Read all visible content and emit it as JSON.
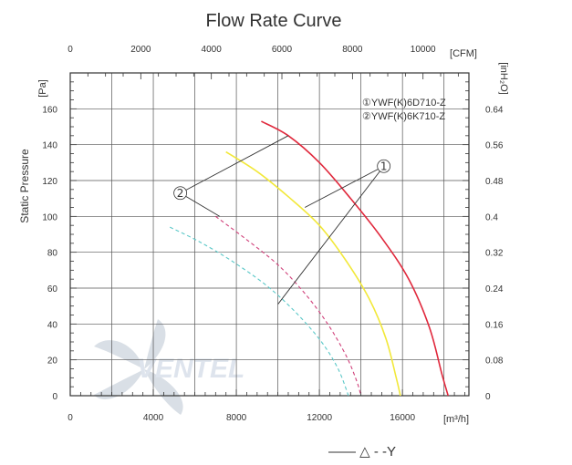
{
  "chart_data": {
    "type": "line",
    "title": "Flow Rate Curve",
    "ylabel": "Static Pressure",
    "x_bottom": {
      "unit": "[m³/h]",
      "range": [
        0,
        19200
      ],
      "ticks": [
        0,
        4000,
        8000,
        12000,
        16000
      ],
      "tick_labels": [
        "0",
        "4000",
        "8000",
        "12000",
        "16000"
      ]
    },
    "x_top": {
      "unit": "[CFM]",
      "range": [
        0,
        11301
      ],
      "ticks": [
        0,
        2000,
        4000,
        6000,
        8000,
        10000
      ],
      "tick_labels": [
        "0",
        "2000",
        "4000",
        "6000",
        "8000",
        "10000"
      ]
    },
    "y_left": {
      "unit": "[Pa]",
      "range": [
        0,
        180
      ],
      "ticks": [
        0,
        20,
        40,
        60,
        80,
        100,
        120,
        140,
        160
      ],
      "tick_labels": [
        "0",
        "20",
        "40",
        "60",
        "80",
        "100",
        "120",
        "140",
        "160"
      ]
    },
    "y_right": {
      "unit": "[inH₂O]",
      "ticks": [
        0,
        0.08,
        0.16,
        0.24,
        0.32,
        0.4,
        0.48,
        0.56,
        0.64
      ],
      "tick_labels": [
        "0",
        "0.08",
        "0.16",
        "0.24",
        "0.32",
        "0.4",
        "0.48",
        "0.56",
        "0.64"
      ]
    },
    "grid": true,
    "legend": [
      "①YWF(K)6D710-Z",
      "②YWF(K)6K710-Z"
    ],
    "series": [
      {
        "color": "#e0283c",
        "dash": false,
        "points": [
          [
            9200,
            153
          ],
          [
            10500,
            145
          ],
          [
            12000,
            130
          ],
          [
            13500,
            110
          ],
          [
            15000,
            88
          ],
          [
            16300,
            65
          ],
          [
            17300,
            38
          ],
          [
            17900,
            12
          ],
          [
            18200,
            0
          ]
        ]
      },
      {
        "color": "#f2e83a",
        "dash": false,
        "points": [
          [
            7500,
            136
          ],
          [
            9000,
            125
          ],
          [
            10500,
            111
          ],
          [
            12000,
            95
          ],
          [
            13300,
            75
          ],
          [
            14400,
            54
          ],
          [
            15200,
            32
          ],
          [
            15700,
            10
          ],
          [
            15900,
            0
          ]
        ]
      },
      {
        "color": "#d0407a",
        "dash": true,
        "points": [
          [
            7000,
            100
          ],
          [
            8500,
            87
          ],
          [
            10000,
            73
          ],
          [
            11300,
            57
          ],
          [
            12400,
            40
          ],
          [
            13300,
            22
          ],
          [
            13800,
            8
          ],
          [
            14000,
            0
          ]
        ]
      },
      {
        "color": "#5bc8c8",
        "dash": true,
        "points": [
          [
            4800,
            94
          ],
          [
            6200,
            86
          ],
          [
            7800,
            75
          ],
          [
            9500,
            61
          ],
          [
            10900,
            46
          ],
          [
            12100,
            30
          ],
          [
            12900,
            15
          ],
          [
            13400,
            0
          ]
        ]
      }
    ],
    "callouts": [
      {
        "label": "①",
        "at": [
          15100,
          128
        ],
        "targets": [
          [
            11300,
            105
          ],
          [
            10000,
            51
          ]
        ]
      },
      {
        "label": "②",
        "at": [
          5300,
          113
        ],
        "targets": [
          [
            10500,
            145
          ],
          [
            7200,
            100
          ]
        ]
      }
    ],
    "footer_text": "—— △ - -Y",
    "watermark": "VENTEL"
  }
}
